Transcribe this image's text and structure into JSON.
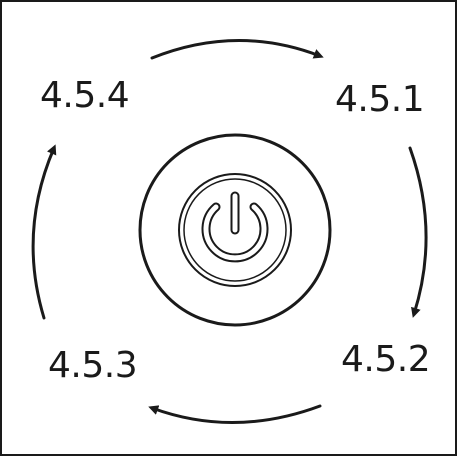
{
  "diagram": {
    "steps": [
      {
        "position": "top-right",
        "label": "4.5.1"
      },
      {
        "position": "bottom-right",
        "label": "4.5.2"
      },
      {
        "position": "bottom-left",
        "label": "4.5.3"
      },
      {
        "position": "top-left",
        "label": "4.5.4"
      }
    ],
    "flow_direction": "clockwise",
    "center_icon": "power-button-icon",
    "colors": {
      "stroke": "#1a1a1a",
      "background": "#ffffff"
    }
  }
}
